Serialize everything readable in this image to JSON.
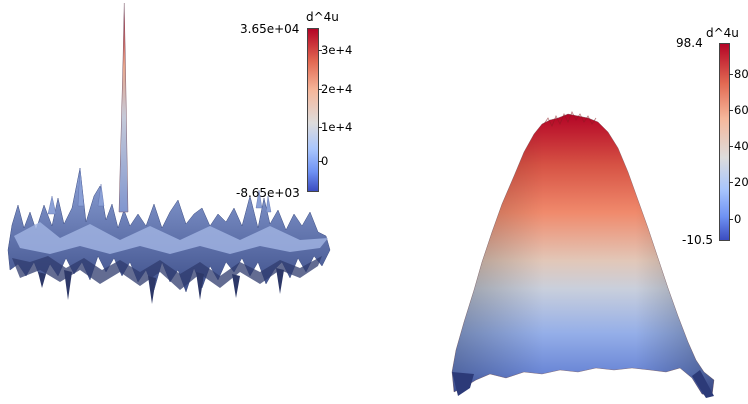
{
  "left_view": {
    "colorbar": {
      "title": "d^4u",
      "max_label": "3.65e+04",
      "min_label": "-8.65e+03",
      "tick_labels": [
        "3e+4",
        "2e+4",
        "1e+4",
        "0"
      ],
      "range": [
        -8650,
        36500
      ],
      "colors": {
        "high": "#b40426",
        "mid": "#dddcdc",
        "low": "#3b4cc0"
      }
    }
  },
  "right_view": {
    "colorbar": {
      "title": "d^4u",
      "max_label": "98.4",
      "min_label": "-10.5",
      "tick_labels": [
        "80",
        "60",
        "40",
        "20",
        "0"
      ],
      "range": [
        -10.5,
        98.4
      ],
      "colors": {
        "high": "#b40426",
        "mid": "#dddcdc",
        "low": "#3b4cc0"
      }
    }
  }
}
